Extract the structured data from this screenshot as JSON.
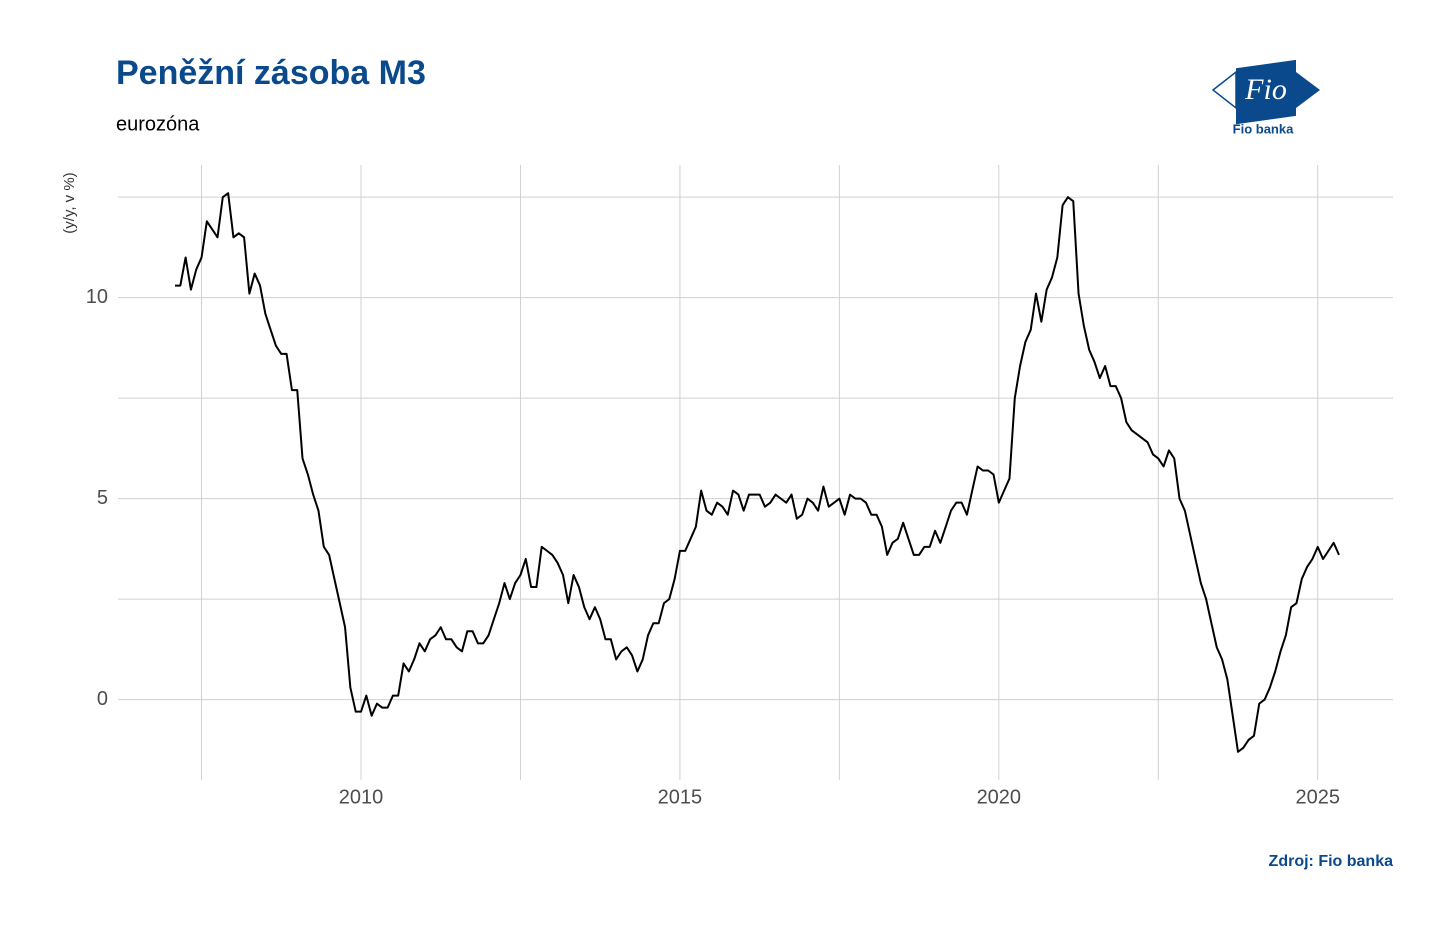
{
  "chart_data": {
    "type": "line",
    "title": "Peněžní zásoba M3",
    "subtitle": "eurozóna",
    "y_label": "(y/y, v %)",
    "source": "Zdroj: Fio banka",
    "logo": {
      "mark": "Fio",
      "name": "Fio banka"
    },
    "xlim": [
      2006.19,
      2026.18
    ],
    "ylim": [
      -2.0,
      13.3
    ],
    "xticks": [
      2010,
      2015,
      2020,
      2025
    ],
    "yticks": [
      0,
      5,
      10
    ],
    "x_minor_grid": [
      2007.5,
      2012.5,
      2017.5,
      2022.5
    ],
    "y_minor_grid": [
      -2.5,
      2.5,
      7.5,
      12.5
    ],
    "grid": true,
    "x": [
      2007.083,
      2007.167,
      2007.25,
      2007.333,
      2007.417,
      2007.5,
      2007.583,
      2007.667,
      2007.75,
      2007.833,
      2007.917,
      2008,
      2008.083,
      2008.167,
      2008.25,
      2008.333,
      2008.417,
      2008.5,
      2008.583,
      2008.667,
      2008.75,
      2008.833,
      2008.917,
      2009,
      2009.083,
      2009.167,
      2009.25,
      2009.333,
      2009.417,
      2009.5,
      2009.583,
      2009.667,
      2009.75,
      2009.833,
      2009.917,
      2010,
      2010.083,
      2010.167,
      2010.25,
      2010.333,
      2010.417,
      2010.5,
      2010.583,
      2010.667,
      2010.75,
      2010.833,
      2010.917,
      2011,
      2011.083,
      2011.167,
      2011.25,
      2011.333,
      2011.417,
      2011.5,
      2011.583,
      2011.667,
      2011.75,
      2011.833,
      2011.917,
      2012,
      2012.083,
      2012.167,
      2012.25,
      2012.333,
      2012.417,
      2012.5,
      2012.583,
      2012.667,
      2012.75,
      2012.833,
      2012.917,
      2013,
      2013.083,
      2013.167,
      2013.25,
      2013.333,
      2013.417,
      2013.5,
      2013.583,
      2013.667,
      2013.75,
      2013.833,
      2013.917,
      2014,
      2014.083,
      2014.167,
      2014.25,
      2014.333,
      2014.417,
      2014.5,
      2014.583,
      2014.667,
      2014.75,
      2014.833,
      2014.917,
      2015,
      2015.083,
      2015.167,
      2015.25,
      2015.333,
      2015.417,
      2015.5,
      2015.583,
      2015.667,
      2015.75,
      2015.833,
      2015.917,
      2016,
      2016.083,
      2016.167,
      2016.25,
      2016.333,
      2016.417,
      2016.5,
      2016.583,
      2016.667,
      2016.75,
      2016.833,
      2016.917,
      2017,
      2017.083,
      2017.167,
      2017.25,
      2017.333,
      2017.417,
      2017.5,
      2017.583,
      2017.667,
      2017.75,
      2017.833,
      2017.917,
      2018,
      2018.083,
      2018.167,
      2018.25,
      2018.333,
      2018.417,
      2018.5,
      2018.583,
      2018.667,
      2018.75,
      2018.833,
      2018.917,
      2019,
      2019.083,
      2019.167,
      2019.25,
      2019.333,
      2019.417,
      2019.5,
      2019.583,
      2019.667,
      2019.75,
      2019.833,
      2019.917,
      2020,
      2020.083,
      2020.167,
      2020.25,
      2020.333,
      2020.417,
      2020.5,
      2020.583,
      2020.667,
      2020.75,
      2020.833,
      2020.917,
      2021,
      2021.083,
      2021.167,
      2021.25,
      2021.333,
      2021.417,
      2021.5,
      2021.583,
      2021.667,
      2021.75,
      2021.833,
      2021.917,
      2022,
      2022.083,
      2022.167,
      2022.25,
      2022.333,
      2022.417,
      2022.5,
      2022.583,
      2022.667,
      2022.75,
      2022.833,
      2022.917,
      2023,
      2023.083,
      2023.167,
      2023.25,
      2023.333,
      2023.417,
      2023.5,
      2023.583,
      2023.667,
      2023.75,
      2023.833,
      2023.917,
      2024,
      2024.083,
      2024.167,
      2024.25,
      2024.333,
      2024.417,
      2024.5,
      2024.583,
      2024.667,
      2024.75,
      2024.833,
      2024.917,
      2025,
      2025.083,
      2025.167,
      2025.25,
      2025.333
    ],
    "series": [
      {
        "color": "#000000",
        "values": [
          10.3,
          10.3,
          11.0,
          10.2,
          10.7,
          11.0,
          11.9,
          11.7,
          11.5,
          12.5,
          12.6,
          11.5,
          11.6,
          11.5,
          10.1,
          10.6,
          10.3,
          9.6,
          9.2,
          8.8,
          8.6,
          8.6,
          7.7,
          7.7,
          6.0,
          5.6,
          5.1,
          4.7,
          3.8,
          3.6,
          3.0,
          2.4,
          1.8,
          0.3,
          -0.3,
          -0.3,
          0.1,
          -0.4,
          -0.1,
          -0.2,
          -0.2,
          0.1,
          0.1,
          0.9,
          0.7,
          1.0,
          1.4,
          1.2,
          1.5,
          1.6,
          1.8,
          1.5,
          1.5,
          1.3,
          1.2,
          1.7,
          1.7,
          1.4,
          1.4,
          1.6,
          2.0,
          2.4,
          2.9,
          2.5,
          2.9,
          3.1,
          3.5,
          2.8,
          2.8,
          3.8,
          3.7,
          3.6,
          3.4,
          3.1,
          2.4,
          3.1,
          2.8,
          2.3,
          2.0,
          2.3,
          2.0,
          1.5,
          1.5,
          1.0,
          1.2,
          1.3,
          1.1,
          0.7,
          1.0,
          1.6,
          1.9,
          1.9,
          2.4,
          2.5,
          3.0,
          3.7,
          3.7,
          4.0,
          4.3,
          5.2,
          4.7,
          4.6,
          4.9,
          4.8,
          4.6,
          5.2,
          5.1,
          4.7,
          5.1,
          5.1,
          5.1,
          4.8,
          4.9,
          5.1,
          5.0,
          4.9,
          5.1,
          4.5,
          4.6,
          5.0,
          4.9,
          4.7,
          5.3,
          4.8,
          4.9,
          5.0,
          4.6,
          5.1,
          5.0,
          5.0,
          4.9,
          4.6,
          4.6,
          4.3,
          3.6,
          3.9,
          4.0,
          4.4,
          4.0,
          3.6,
          3.6,
          3.8,
          3.8,
          4.2,
          3.9,
          4.3,
          4.7,
          4.9,
          4.9,
          4.6,
          5.2,
          5.8,
          5.7,
          5.7,
          5.6,
          4.9,
          5.2,
          5.5,
          7.5,
          8.3,
          8.9,
          9.2,
          10.1,
          9.4,
          10.2,
          10.5,
          11.0,
          12.3,
          12.5,
          12.4,
          10.1,
          9.3,
          8.7,
          8.4,
          8.0,
          8.3,
          7.8,
          7.8,
          7.5,
          6.9,
          6.7,
          6.6,
          6.5,
          6.4,
          6.1,
          6.0,
          5.8,
          6.2,
          6.0,
          5.0,
          4.7,
          4.1,
          3.5,
          2.9,
          2.5,
          1.9,
          1.3,
          1.0,
          0.5,
          -0.4,
          -1.3,
          -1.2,
          -1.0,
          -0.9,
          -0.1,
          0.0,
          0.3,
          0.7,
          1.2,
          1.6,
          2.3,
          2.4,
          3.0,
          3.3,
          3.5,
          3.8,
          3.5,
          3.7,
          3.9,
          3.6
        ]
      }
    ]
  }
}
